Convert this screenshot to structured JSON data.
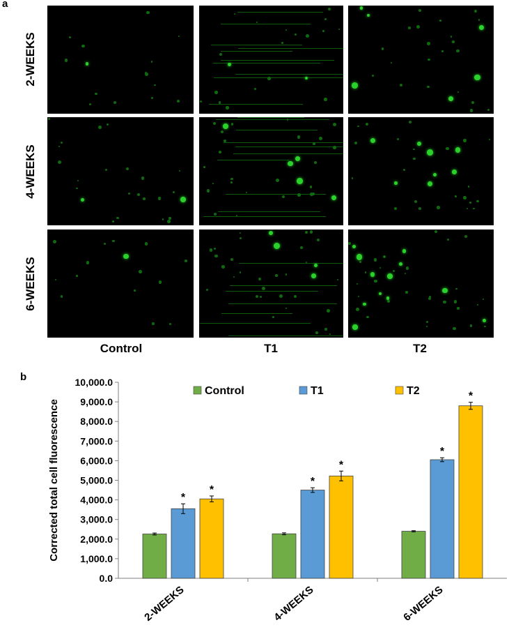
{
  "panel_a": {
    "label": "a",
    "rows": [
      "2-WEEKS",
      "4-WEEKS",
      "6-WEEKS"
    ],
    "columns": [
      "Control",
      "T1",
      "T2"
    ]
  },
  "panel_b": {
    "label": "b"
  },
  "colors": {
    "Control": "#70ad47",
    "T1": "#5b9bd5",
    "T2": "#ffc000",
    "fluorescence": "#2ad12a"
  },
  "chart_data": {
    "type": "bar",
    "categories": [
      "2-WEEKS",
      "4-WEEKS",
      "6-WEEKS"
    ],
    "series": [
      {
        "name": "Control",
        "values": [
          2260,
          2270,
          2400
        ],
        "errors": [
          50,
          50,
          30
        ],
        "significant": [
          false,
          false,
          false
        ]
      },
      {
        "name": "T1",
        "values": [
          3550,
          4500,
          6050
        ],
        "errors": [
          250,
          120,
          100
        ],
        "significant": [
          true,
          true,
          true
        ]
      },
      {
        "name": "T2",
        "values": [
          4050,
          5220,
          8800
        ],
        "errors": [
          150,
          250,
          180
        ],
        "significant": [
          true,
          true,
          true
        ]
      }
    ],
    "significance_marker": "*",
    "ylabel": "Corrected total cell fluorescence",
    "xlabel": "",
    "ylim": [
      0,
      10000
    ],
    "yticks": [
      "0.0",
      "1,000.0",
      "2,000.0",
      "3,000.0",
      "4,000.0",
      "5,000.0",
      "6,000.0",
      "7,000.0",
      "8,000.0",
      "9,000.0",
      "10,000.0"
    ],
    "legend_position": "top",
    "grid": false
  }
}
